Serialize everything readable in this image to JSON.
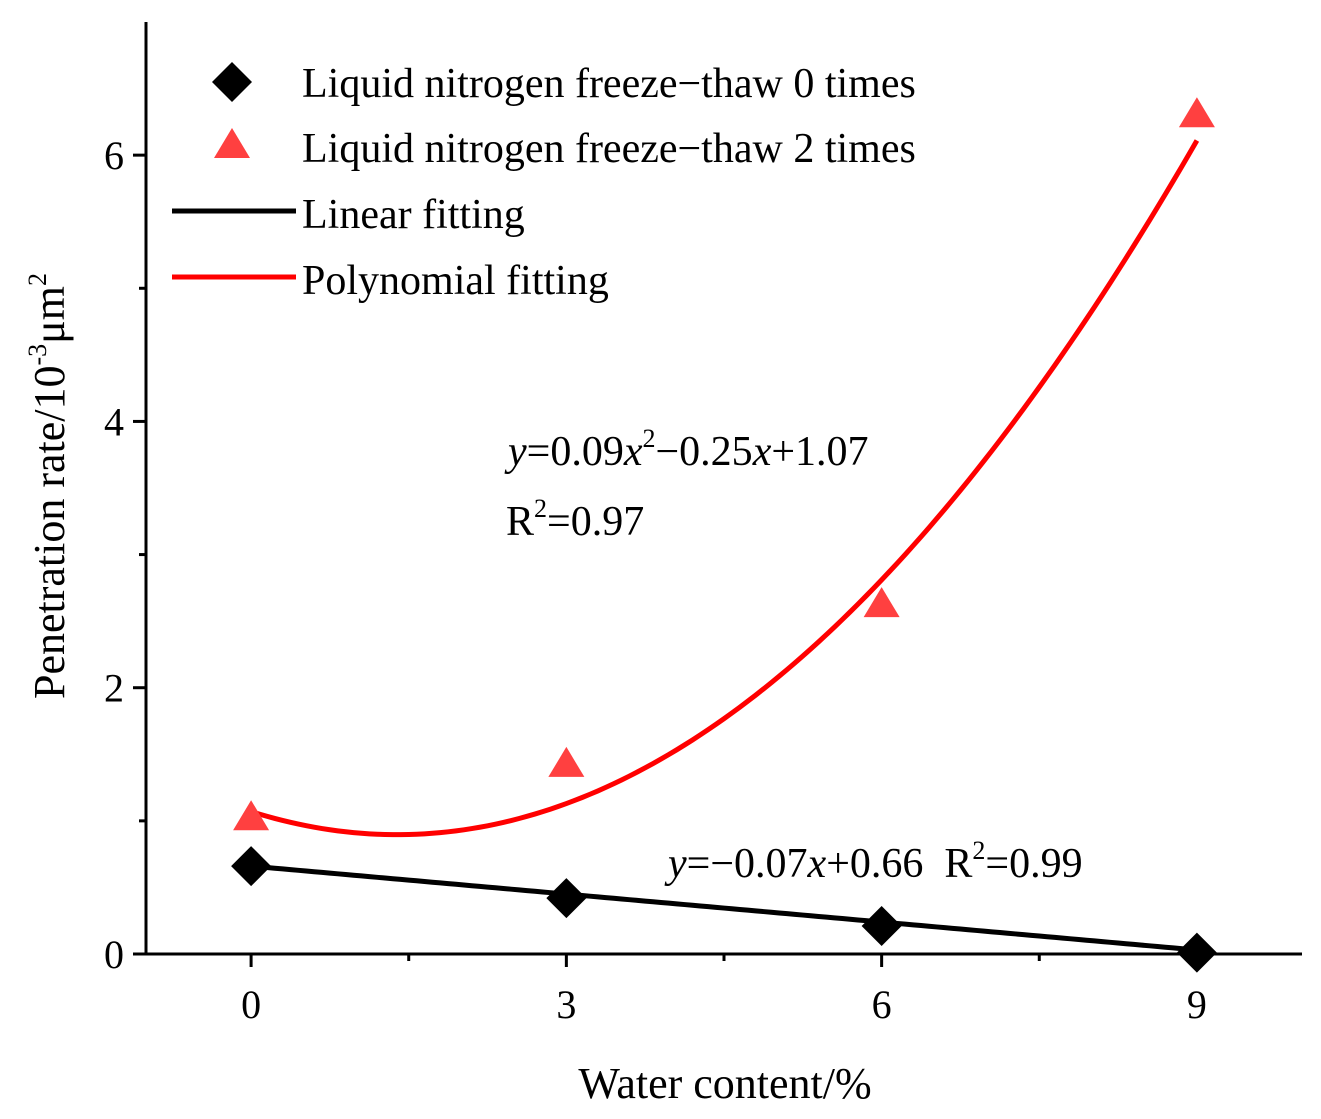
{
  "chart_data": {
    "type": "scatter",
    "title": "",
    "xlabel": "Water content/%",
    "ylabel": {
      "main": "Penetration rate/10",
      "exp": "-3",
      "unit": "μm",
      "unit_exp": "2"
    },
    "xlim": [
      -1,
      10
    ],
    "ylim": [
      0,
      7
    ],
    "xticks": [
      0,
      3,
      6,
      9
    ],
    "xticks_minor": [
      1.5,
      4.5,
      7.5
    ],
    "yticks": [
      0,
      2,
      4,
      6
    ],
    "yticks_minor": [
      1,
      3,
      5
    ],
    "grid": false,
    "legend_position": "top-left",
    "series": [
      {
        "name": "Liquid nitrogen freeze−thaw 0 times",
        "marker": "diamond",
        "color": "#000000",
        "x": [
          0,
          3,
          6,
          9
        ],
        "y": [
          0.66,
          0.42,
          0.21,
          0.01
        ]
      },
      {
        "name": "Liquid nitrogen freeze−thaw 2 times",
        "marker": "triangle",
        "color": "#ff4040",
        "x": [
          0,
          3,
          6,
          9
        ],
        "y": [
          1.02,
          1.42,
          2.62,
          6.3
        ]
      }
    ],
    "fits": [
      {
        "name": "Linear fitting",
        "kind": "linear",
        "color": "#000000",
        "coef": [
          0.66,
          -0.07
        ],
        "domain": [
          0,
          9
        ]
      },
      {
        "name": "Polynomial fitting",
        "kind": "polynomial",
        "color": "#ff0000",
        "coef": [
          1.07,
          -0.25,
          0.09
        ],
        "domain": [
          0,
          9
        ]
      }
    ],
    "annotations": {
      "poly": {
        "y": "y",
        "p1": "=0.09",
        "x": "x",
        "sq": "2",
        "p2": "−0.25",
        "p3": "+1.07",
        "r": "R",
        "r2": "=0.97"
      },
      "linear": {
        "y": "y",
        "p1": "=−0.07",
        "x": "x",
        "p2": "+0.66  R",
        "sq": "2",
        "r2": "=0.99"
      }
    }
  }
}
